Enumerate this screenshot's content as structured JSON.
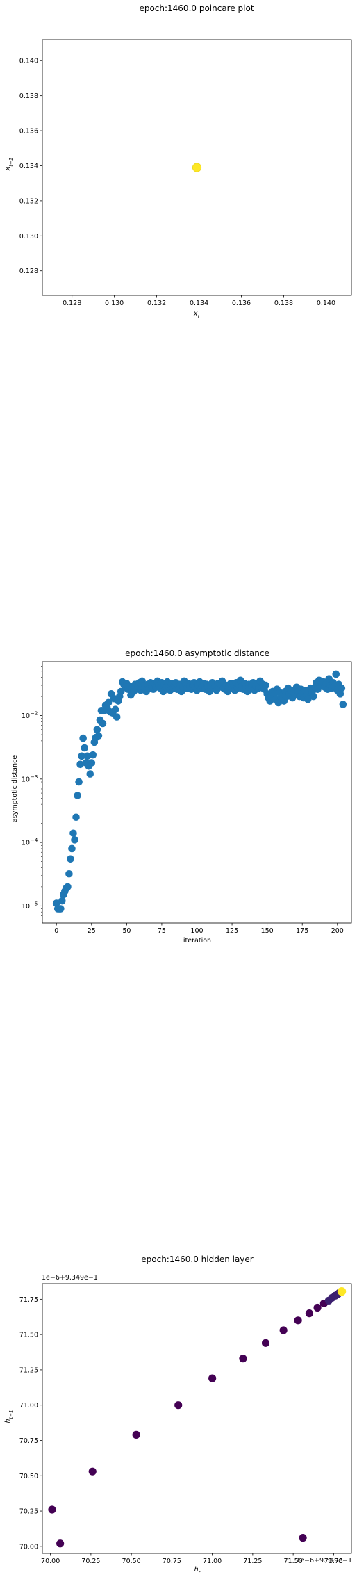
{
  "chart_data": [
    {
      "type": "scatter",
      "title": "epoch:1460.0 poincare plot",
      "xlabel": "x_t",
      "ylabel": "x_{t-1}",
      "xlim": [
        0.1266,
        0.1412
      ],
      "ylim": [
        0.1266,
        0.1412
      ],
      "xticks": [
        0.128,
        0.13,
        0.132,
        0.134,
        0.136,
        0.138,
        0.14
      ],
      "yticks": [
        0.128,
        0.13,
        0.132,
        0.134,
        0.136,
        0.138,
        0.14
      ],
      "xtick_labels": [
        "0.128",
        "0.130",
        "0.132",
        "0.134",
        "0.136",
        "0.138",
        "0.140"
      ],
      "ytick_labels": [
        "0.128",
        "0.130",
        "0.132",
        "0.134",
        "0.136",
        "0.138",
        "0.140"
      ],
      "points": [
        {
          "x": 0.1339,
          "y": 0.1339
        }
      ],
      "colors": {
        "point": "#fde725",
        "point_edge": "#e8d421"
      },
      "grid": false
    },
    {
      "type": "scatter",
      "title": "epoch:1460.0 asymptotic distance",
      "xlabel": "iteration",
      "ylabel": "asymptotic distance",
      "yscale": "log",
      "xlim": [
        -10,
        210
      ],
      "ylim_log10": [
        -5.27,
        -1.15
      ],
      "xticks": [
        0,
        25,
        50,
        75,
        100,
        125,
        150,
        175,
        200
      ],
      "xtick_labels": [
        "0",
        "25",
        "50",
        "75",
        "100",
        "125",
        "150",
        "175",
        "200"
      ],
      "yticks_log10": [
        -5,
        -4,
        -3,
        -2
      ],
      "ytick_labels": [
        "10",
        "10",
        "10",
        "10"
      ],
      "ytick_exponents": [
        "−5",
        "−4",
        "−3",
        "−2"
      ],
      "colors": {
        "point": "#1f77b4"
      },
      "grid": false,
      "y": [
        1.1e-05,
        9e-06,
        9e-06,
        9e-06,
        1.2e-05,
        1.5e-05,
        1.7e-05,
        1.9e-05,
        2e-05,
        3.2e-05,
        5.5e-05,
        8e-05,
        0.00014,
        0.00011,
        0.00025,
        0.00055,
        0.0009,
        0.0017,
        0.0023,
        0.0044,
        0.0031,
        0.0018,
        0.0023,
        0.0016,
        0.0012,
        0.0018,
        0.0024,
        0.0038,
        0.0045,
        0.006,
        0.0048,
        0.0085,
        0.012,
        0.0075,
        0.012,
        0.0145,
        0.0135,
        0.016,
        0.0115,
        0.022,
        0.011,
        0.0185,
        0.0125,
        0.0095,
        0.017,
        0.02,
        0.024,
        0.034,
        0.031,
        0.028,
        0.032,
        0.026,
        0.029,
        0.021,
        0.027,
        0.024,
        0.031,
        0.026,
        0.029,
        0.033,
        0.025,
        0.035,
        0.028,
        0.03,
        0.024,
        0.031,
        0.027,
        0.033,
        0.029,
        0.026,
        0.032,
        0.028,
        0.035,
        0.03,
        0.027,
        0.033,
        0.024,
        0.031,
        0.028,
        0.034,
        0.029,
        0.025,
        0.032,
        0.027,
        0.03,
        0.033,
        0.026,
        0.029,
        0.031,
        0.024,
        0.028,
        0.035,
        0.03,
        0.027,
        0.032,
        0.029,
        0.026,
        0.031,
        0.033,
        0.028,
        0.025,
        0.03,
        0.034,
        0.027,
        0.029,
        0.032,
        0.026,
        0.031,
        0.028,
        0.024,
        0.03,
        0.033,
        0.027,
        0.029,
        0.025,
        0.032,
        0.028,
        0.031,
        0.035,
        0.027,
        0.026,
        0.03,
        0.024,
        0.029,
        0.032,
        0.028,
        0.031,
        0.025,
        0.033,
        0.027,
        0.03,
        0.036,
        0.029,
        0.026,
        0.032,
        0.028,
        0.024,
        0.031,
        0.027,
        0.03,
        0.033,
        0.025,
        0.029,
        0.032,
        0.027,
        0.035,
        0.028,
        0.031,
        0.026,
        0.03,
        0.022,
        0.019,
        0.017,
        0.02,
        0.024,
        0.021,
        0.018,
        0.026,
        0.016,
        0.023,
        0.019,
        0.021,
        0.017,
        0.024,
        0.02,
        0.027,
        0.022,
        0.025,
        0.019,
        0.023,
        0.021,
        0.028,
        0.024,
        0.02,
        0.026,
        0.022,
        0.019,
        0.025,
        0.021,
        0.018,
        0.024,
        0.027,
        0.023,
        0.02,
        0.028,
        0.033,
        0.026,
        0.036,
        0.029,
        0.031,
        0.034,
        0.028,
        0.032,
        0.026,
        0.038,
        0.03,
        0.027,
        0.033,
        0.029,
        0.045,
        0.025,
        0.031,
        0.022,
        0.027,
        0.015
      ]
    },
    {
      "type": "scatter",
      "title": "epoch:1460.0 hidden layer",
      "xlabel": "h_t",
      "ylabel": "h_{t-1}",
      "xlim": [
        69.95,
        71.86
      ],
      "ylim": [
        69.95,
        71.86
      ],
      "xticks": [
        70.0,
        70.25,
        70.5,
        70.75,
        71.0,
        71.25,
        71.5,
        71.75
      ],
      "yticks": [
        70.0,
        70.25,
        70.5,
        70.75,
        71.0,
        71.25,
        71.5,
        71.75
      ],
      "xtick_labels": [
        "70.00",
        "70.25",
        "70.50",
        "70.75",
        "71.00",
        "71.25",
        "71.50",
        "71.75"
      ],
      "ytick_labels": [
        "70.00",
        "70.25",
        "70.50",
        "70.75",
        "71.00",
        "71.25",
        "71.50",
        "71.75"
      ],
      "offset_text_x": "1e−6+9.349e−1",
      "offset_text_y": "1e−6+9.349e−1",
      "colors": {
        "early": "#440154",
        "late": "#3b1f6f",
        "final": "#fde725"
      },
      "grid": false,
      "points": [
        {
          "x": 70.06,
          "y": 70.02
        },
        {
          "x": 70.01,
          "y": 70.26
        },
        {
          "x": 70.26,
          "y": 70.53
        },
        {
          "x": 70.53,
          "y": 70.79
        },
        {
          "x": 70.79,
          "y": 71.0
        },
        {
          "x": 71.0,
          "y": 71.19
        },
        {
          "x": 71.19,
          "y": 71.33
        },
        {
          "x": 71.33,
          "y": 71.44
        },
        {
          "x": 71.44,
          "y": 71.53
        },
        {
          "x": 71.53,
          "y": 71.6
        },
        {
          "x": 71.6,
          "y": 71.65
        },
        {
          "x": 71.65,
          "y": 71.69
        },
        {
          "x": 71.69,
          "y": 71.72
        },
        {
          "x": 71.72,
          "y": 71.74
        },
        {
          "x": 71.74,
          "y": 71.76
        },
        {
          "x": 71.76,
          "y": 71.775
        },
        {
          "x": 71.775,
          "y": 71.785
        },
        {
          "x": 71.785,
          "y": 71.795
        },
        {
          "x": 71.795,
          "y": 71.8
        },
        {
          "x": 71.56,
          "y": 70.06
        },
        {
          "x": 71.8,
          "y": 71.805,
          "final": true
        }
      ]
    }
  ]
}
